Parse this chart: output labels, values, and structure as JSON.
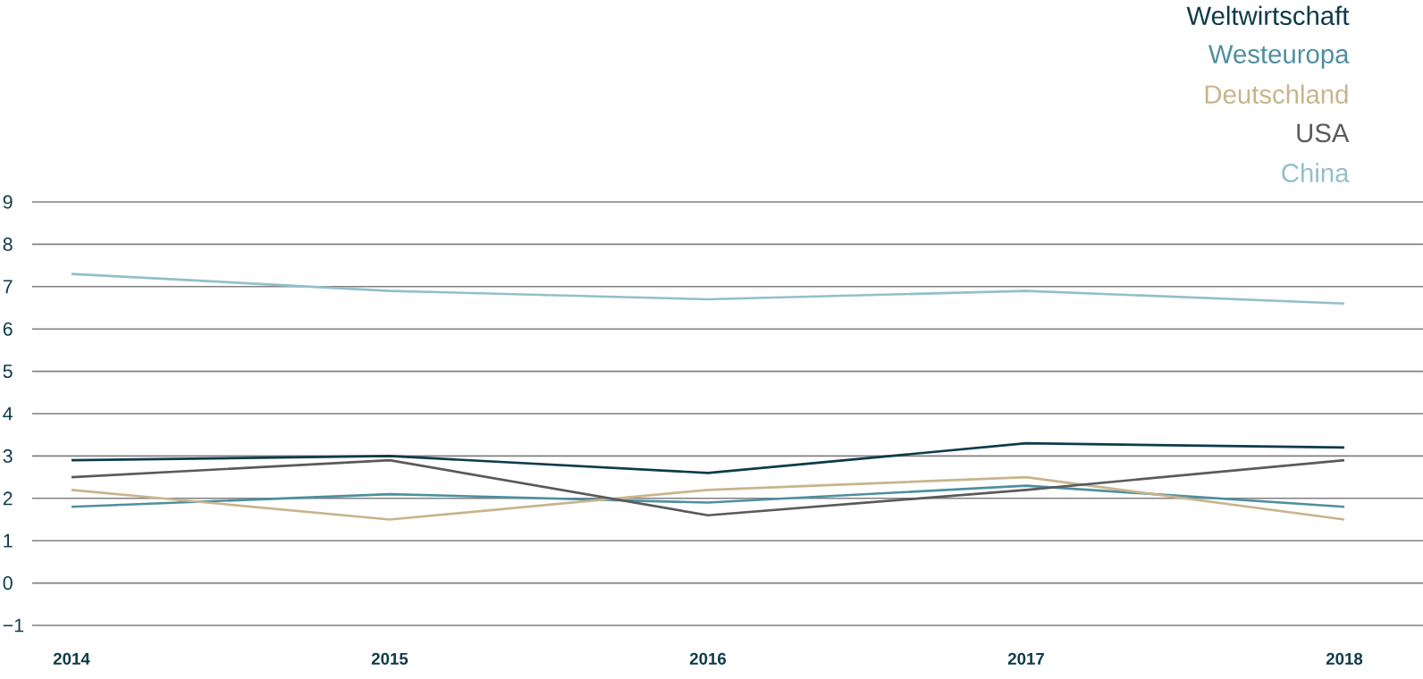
{
  "chart_data": {
    "type": "line",
    "categories": [
      "2014",
      "2015",
      "2016",
      "2017",
      "2018"
    ],
    "series": [
      {
        "name": "Weltwirtschaft",
        "color": "#0d3b4a",
        "values": [
          2.9,
          3.0,
          2.6,
          3.3,
          3.2
        ]
      },
      {
        "name": "Westeuropa",
        "color": "#4e8fa0",
        "values": [
          1.8,
          2.1,
          1.9,
          2.3,
          1.8
        ]
      },
      {
        "name": "Deutschland",
        "color": "#c8b48c",
        "values": [
          2.2,
          1.5,
          2.2,
          2.5,
          1.5
        ]
      },
      {
        "name": "USA",
        "color": "#5a5a5a",
        "values": [
          2.5,
          2.9,
          1.6,
          2.2,
          2.9
        ]
      },
      {
        "name": "China",
        "color": "#93bfca",
        "values": [
          7.3,
          6.9,
          6.7,
          6.9,
          6.6
        ]
      }
    ],
    "ylim": [
      -1,
      9
    ],
    "yticks": [
      {
        "value": -1,
        "label": "−1"
      },
      0,
      1,
      2,
      3,
      4,
      5,
      6,
      7,
      8,
      9
    ],
    "grid": "y",
    "legend": "top right",
    "marker": "none",
    "line_style": "solid"
  }
}
